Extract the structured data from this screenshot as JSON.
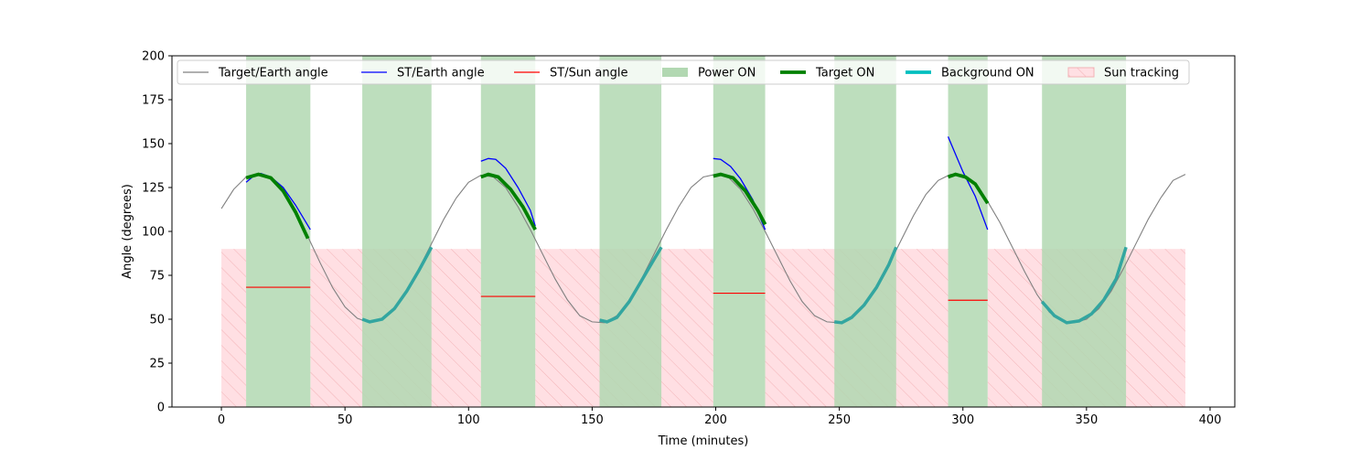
{
  "chart_data": {
    "type": "line",
    "title": "",
    "xlabel": "Time (minutes)",
    "ylabel": "Angle (degrees)",
    "xlim": [
      -20,
      410
    ],
    "ylim": [
      0,
      200
    ],
    "xticks": [
      0,
      50,
      100,
      150,
      200,
      250,
      300,
      350,
      400
    ],
    "yticks": [
      0,
      25,
      50,
      75,
      100,
      125,
      150,
      175,
      200
    ],
    "grid": false,
    "legend_position": "top",
    "legend": [
      {
        "label": "Target/Earth angle",
        "style": "line",
        "color": "#808080"
      },
      {
        "label": "ST/Earth angle",
        "style": "line",
        "color": "#0000ff"
      },
      {
        "label": "ST/Sun angle",
        "style": "line",
        "color": "#ff0000"
      },
      {
        "label": "Power ON",
        "style": "patch",
        "color": "#b2d8b2"
      },
      {
        "label": "Target ON",
        "style": "thickline",
        "color": "#008000"
      },
      {
        "label": "Background ON",
        "style": "thickline",
        "color": "#00bfbf"
      },
      {
        "label": "Sun tracking",
        "style": "hatchpatch",
        "color": "#ffdfe3"
      }
    ],
    "series": {
      "target_earth": {
        "color": "#808080",
        "points": [
          [
            0,
            113
          ],
          [
            5,
            124
          ],
          [
            10,
            131
          ],
          [
            15,
            132.5
          ],
          [
            20,
            130
          ],
          [
            25,
            122
          ],
          [
            30,
            110
          ],
          [
            35,
            97
          ],
          [
            40,
            82
          ],
          [
            45,
            68
          ],
          [
            50,
            57
          ],
          [
            55,
            50.5
          ],
          [
            60,
            48
          ],
          [
            65,
            50
          ],
          [
            70,
            56
          ],
          [
            75,
            66
          ],
          [
            80,
            79
          ],
          [
            85,
            93
          ],
          [
            90,
            107
          ],
          [
            95,
            119
          ],
          [
            100,
            128
          ],
          [
            105,
            132
          ],
          [
            110,
            131
          ],
          [
            115,
            125
          ],
          [
            120,
            114
          ],
          [
            125,
            101
          ],
          [
            130,
            87
          ],
          [
            135,
            73
          ],
          [
            140,
            61
          ],
          [
            145,
            52
          ],
          [
            150,
            48.5
          ],
          [
            155,
            48
          ],
          [
            160,
            52
          ],
          [
            165,
            61
          ],
          [
            170,
            73
          ],
          [
            175,
            87
          ],
          [
            180,
            101
          ],
          [
            185,
            114
          ],
          [
            190,
            125
          ],
          [
            195,
            131
          ],
          [
            200,
            132.5
          ],
          [
            205,
            131
          ],
          [
            210,
            124
          ],
          [
            215,
            113
          ],
          [
            220,
            100
          ],
          [
            225,
            86
          ],
          [
            230,
            72
          ],
          [
            235,
            60
          ],
          [
            240,
            52
          ],
          [
            245,
            48.5
          ],
          [
            250,
            48
          ],
          [
            255,
            51
          ],
          [
            260,
            58
          ],
          [
            265,
            68
          ],
          [
            270,
            81
          ],
          [
            275,
            95
          ],
          [
            280,
            109
          ],
          [
            285,
            121
          ],
          [
            290,
            129
          ],
          [
            295,
            132.5
          ],
          [
            300,
            132
          ],
          [
            305,
            127
          ],
          [
            310,
            117
          ],
          [
            315,
            105
          ],
          [
            320,
            91
          ],
          [
            325,
            77
          ],
          [
            330,
            64
          ],
          [
            335,
            54
          ],
          [
            340,
            49
          ],
          [
            345,
            48
          ],
          [
            350,
            50
          ],
          [
            355,
            56
          ],
          [
            360,
            66
          ],
          [
            365,
            79
          ],
          [
            370,
            93
          ],
          [
            375,
            107
          ],
          [
            380,
            119
          ],
          [
            385,
            129
          ],
          [
            390,
            132.5
          ]
        ]
      },
      "target_on_segments": [
        [
          [
            10,
            130.5
          ],
          [
            15,
            132.5
          ],
          [
            20,
            130.5
          ],
          [
            25,
            123
          ],
          [
            30,
            111
          ],
          [
            35,
            96
          ]
        ],
        [
          [
            105,
            131
          ],
          [
            108,
            132.5
          ],
          [
            112,
            131
          ],
          [
            117,
            124
          ],
          [
            122,
            114
          ],
          [
            127,
            101
          ]
        ],
        [
          [
            199,
            131.5
          ],
          [
            202,
            132.5
          ],
          [
            207,
            130.5
          ],
          [
            212,
            123
          ],
          [
            217,
            112
          ],
          [
            220,
            104
          ]
        ],
        [
          [
            294,
            131
          ],
          [
            297,
            132.5
          ],
          [
            301,
            131
          ],
          [
            305,
            127
          ],
          [
            310,
            116
          ]
        ]
      ],
      "background_on_segments": [
        [
          [
            57,
            50
          ],
          [
            60,
            48.5
          ],
          [
            65,
            50
          ],
          [
            70,
            56
          ],
          [
            75,
            66
          ],
          [
            80,
            78
          ],
          [
            85,
            91
          ]
        ],
        [
          [
            153,
            49.5
          ],
          [
            156,
            48.5
          ],
          [
            160,
            51
          ],
          [
            165,
            60
          ],
          [
            170,
            72
          ],
          [
            175,
            84
          ],
          [
            178,
            91
          ]
        ],
        [
          [
            248,
            48.5
          ],
          [
            251,
            48
          ],
          [
            255,
            51
          ],
          [
            260,
            58
          ],
          [
            265,
            68
          ],
          [
            270,
            81
          ],
          [
            273,
            91
          ]
        ],
        [
          [
            332,
            60
          ],
          [
            337,
            52
          ],
          [
            342,
            48
          ],
          [
            347,
            49
          ],
          [
            352,
            53
          ],
          [
            357,
            61
          ],
          [
            362,
            73
          ],
          [
            366,
            91
          ]
        ]
      ],
      "st_earth_segments": [
        [
          [
            10,
            128
          ],
          [
            13,
            131.5
          ],
          [
            16,
            133
          ],
          [
            20,
            131
          ],
          [
            25,
            125
          ],
          [
            30,
            115
          ],
          [
            36,
            101
          ]
        ],
        [
          [
            105,
            140
          ],
          [
            108,
            141.5
          ],
          [
            111,
            141
          ],
          [
            115,
            136
          ],
          [
            120,
            125
          ],
          [
            125,
            112
          ],
          [
            127,
            103
          ]
        ],
        [
          [
            199,
            141.5
          ],
          [
            202,
            141
          ],
          [
            206,
            137
          ],
          [
            210,
            130
          ],
          [
            215,
            118
          ],
          [
            220,
            101
          ]
        ],
        [
          [
            294,
            154
          ],
          [
            300,
            134
          ],
          [
            305,
            120
          ],
          [
            310,
            101
          ]
        ]
      ],
      "st_sun_segments": [
        [
          [
            10,
            68.2
          ],
          [
            36,
            68.2
          ]
        ],
        [
          [
            105,
            63
          ],
          [
            127,
            63
          ]
        ],
        [
          [
            199,
            64.8
          ],
          [
            220,
            64.8
          ]
        ],
        [
          [
            294,
            60.8
          ],
          [
            310,
            60.8
          ]
        ]
      ]
    },
    "power_on_intervals": [
      [
        10,
        36
      ],
      [
        57,
        85
      ],
      [
        105,
        127
      ],
      [
        153,
        178
      ],
      [
        199,
        220
      ],
      [
        248,
        273
      ],
      [
        294,
        310
      ],
      [
        332,
        366
      ]
    ],
    "sun_tracking": {
      "level": 90,
      "intervals": [
        [
          0,
          10
        ],
        [
          36,
          105
        ],
        [
          127,
          199
        ],
        [
          220,
          294
        ],
        [
          310,
          390
        ]
      ]
    },
    "colors": {
      "power": "#b2d8b2",
      "sun_fill": "#ffdfe3",
      "sun_hatch": "#f3b3b7",
      "target_on": "#008000",
      "background_on": "#33a6a0",
      "st_earth": "#0000ff",
      "st_sun": "#ff0000"
    }
  }
}
